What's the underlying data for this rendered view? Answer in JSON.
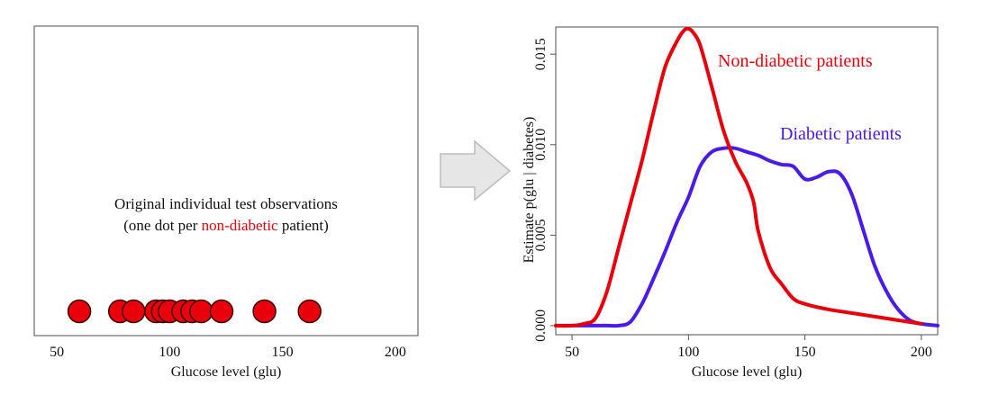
{
  "chart_data": [
    {
      "type": "scatter",
      "annotation": {
        "line1": "Original individual test observations",
        "line2_prefix": "(one dot per ",
        "line2_highlight": "non-diabetic",
        "line2_suffix": " patient)"
      },
      "xlabel": "Glucose level (glu)",
      "xlim": [
        40,
        210
      ],
      "xticks": [
        50,
        100,
        150,
        200
      ],
      "points_x": [
        60,
        78,
        84,
        94,
        97,
        100,
        106,
        110,
        114,
        123,
        142,
        162
      ],
      "point_color": "#e8000b",
      "highlight_color": "#e8000b"
    },
    {
      "type": "line",
      "xlabel": "Glucose level (glu)",
      "ylabel": "Estimate  p(glu | diabetes)",
      "xlim": [
        43,
        207
      ],
      "ylim": [
        -0.0005,
        0.0165
      ],
      "xticks": [
        50,
        100,
        150,
        200
      ],
      "yticks": [
        0.0,
        0.005,
        0.01,
        0.015
      ],
      "ytick_labels": [
        "0.000",
        "0.005",
        "0.010",
        "0.015"
      ],
      "series": [
        {
          "name": "Non-diabetic patients",
          "color": "#e8000b",
          "x": [
            43,
            50,
            55,
            60,
            65,
            70,
            75,
            80,
            85,
            90,
            95,
            98,
            100,
            102,
            105,
            110,
            115,
            120,
            125,
            128,
            130,
            135,
            140,
            145,
            150,
            160,
            170,
            180,
            190,
            200
          ],
          "y": [
            0.0,
            0.0,
            0.0001,
            0.0004,
            0.0019,
            0.0043,
            0.0067,
            0.0091,
            0.0118,
            0.0143,
            0.0157,
            0.0163,
            0.0164,
            0.0162,
            0.0155,
            0.0132,
            0.0108,
            0.0091,
            0.0079,
            0.0068,
            0.0052,
            0.0032,
            0.0023,
            0.0015,
            0.0012,
            0.0009,
            0.0007,
            0.0005,
            0.0003,
            0.0001
          ]
        },
        {
          "name": "Diabetic patients",
          "color": "#4a1be8",
          "x": [
            43,
            60,
            65,
            70,
            75,
            80,
            85,
            90,
            95,
            100,
            105,
            110,
            115,
            120,
            125,
            130,
            135,
            140,
            145,
            150,
            155,
            160,
            165,
            170,
            175,
            180,
            185,
            190,
            195,
            200,
            207
          ],
          "y": [
            0.0,
            0.0,
            0.0,
            0.0,
            0.0002,
            0.0012,
            0.0026,
            0.0041,
            0.0057,
            0.0071,
            0.0088,
            0.0096,
            0.0098,
            0.0098,
            0.0096,
            0.0094,
            0.0091,
            0.0089,
            0.0088,
            0.0081,
            0.0082,
            0.0085,
            0.0084,
            0.0073,
            0.0053,
            0.0033,
            0.0019,
            0.0009,
            0.0003,
            0.0001,
            0.0
          ]
        }
      ]
    }
  ],
  "arrow": {
    "fill": "#e6e6e6",
    "stroke": "#bdbdbd"
  }
}
